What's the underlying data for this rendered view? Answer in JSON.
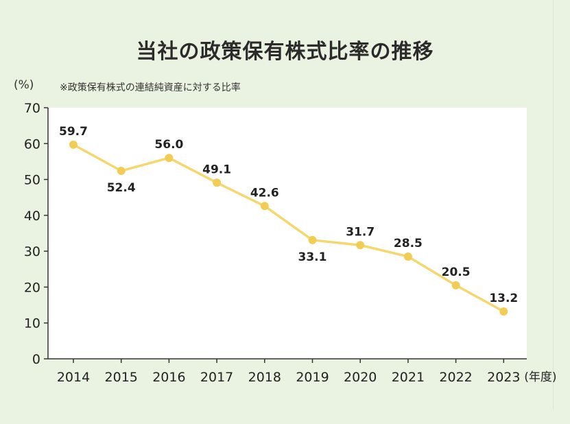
{
  "chart_data": {
    "type": "line",
    "title": "当社の政策保有株式比率の推移",
    "note": "※政策保有株式の連結純資産に対する比率",
    "ylabel": "(%)",
    "xlabel_suffix": "(年度)",
    "categories": [
      "2014",
      "2015",
      "2016",
      "2017",
      "2018",
      "2019",
      "2020",
      "2021",
      "2022",
      "2023"
    ],
    "values": [
      59.7,
      52.4,
      56.0,
      49.1,
      42.6,
      33.1,
      31.7,
      28.5,
      20.5,
      13.2
    ],
    "value_labels": [
      "59.7",
      "52.4",
      "56.0",
      "49.1",
      "42.6",
      "33.1",
      "31.7",
      "28.5",
      "20.5",
      "13.2"
    ],
    "label_positions": [
      "above",
      "below",
      "above",
      "above",
      "above",
      "below",
      "above",
      "above",
      "above",
      "above"
    ],
    "ylim": [
      0,
      70
    ],
    "yticks": [
      "0",
      "10",
      "20",
      "30",
      "40",
      "50",
      "60",
      "70"
    ],
    "grid": false,
    "colors": {
      "line": "#f5d76e",
      "marker": "#f2cd56",
      "plot_background": "#ffffff",
      "page_background": "#eaf3e1",
      "axis": "#333333"
    }
  }
}
